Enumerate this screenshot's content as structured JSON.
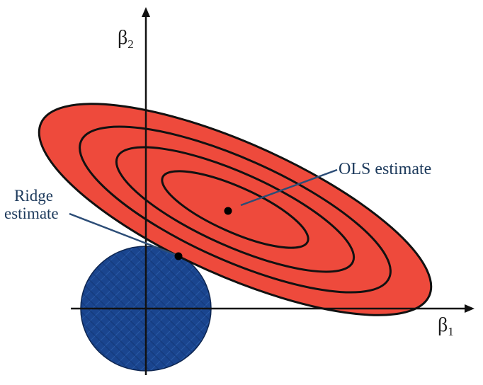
{
  "diagram": {
    "axes": {
      "x_label": "β",
      "x_subscript": "1",
      "y_label": "β",
      "y_subscript": "2"
    },
    "annotations": {
      "ols_label": "OLS estimate",
      "ridge_label_line1": "Ridge",
      "ridge_label_line2": "estimate"
    },
    "colors": {
      "ellipse_fill": "#ee4a3c",
      "ellipse_stroke": "#111111",
      "constraint_fill": "#173f8a",
      "constraint_stroke": "#0d2550",
      "axis": "#111111",
      "label_text": "#1d3a5c",
      "leader_line": "#2c4d77"
    },
    "elements": {
      "contour_count": 4,
      "constraint_shape": "circle",
      "points": [
        "ols-estimate",
        "ridge-estimate"
      ]
    }
  }
}
